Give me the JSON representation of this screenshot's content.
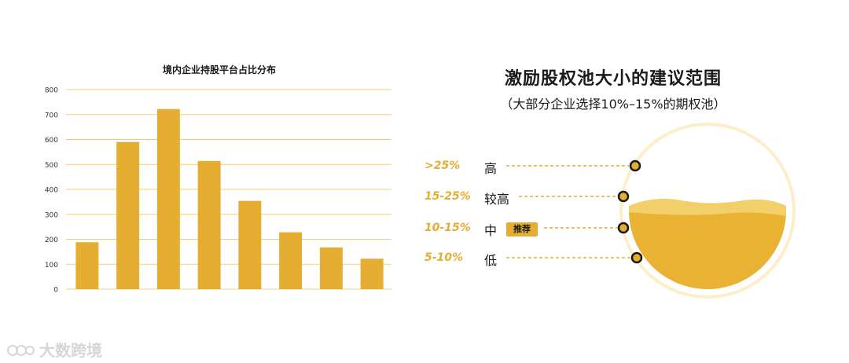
{
  "chart_data": {
    "type": "bar",
    "title": "境内企业持股平台占比分布",
    "categories": [
      "",
      "",
      "",
      "",
      "",
      "",
      "",
      ""
    ],
    "values": [
      188,
      590,
      722,
      514,
      354,
      228,
      167,
      122
    ],
    "ylim": [
      0,
      800
    ],
    "yticks": [
      0,
      100,
      200,
      300,
      400,
      500,
      600,
      700,
      800
    ],
    "grid": true,
    "color": "#e6ad33"
  },
  "right": {
    "title": "激励股权池大小的建议范围",
    "subtitle": "（大部分企业选择10%–15%的期权池）",
    "levels": [
      {
        "range": ">25%",
        "label": "高"
      },
      {
        "range": "15-25%",
        "label": "较高"
      },
      {
        "range": "10-15%",
        "label": "中",
        "badge": "推荐"
      },
      {
        "range": "5-10%",
        "label": "低"
      }
    ]
  },
  "watermark": "大数跨境",
  "colors": {
    "accent": "#e6ad33",
    "accent_light": "#f3cf6a",
    "dark": "#1a1a1a",
    "grid": "#f0cf72"
  }
}
